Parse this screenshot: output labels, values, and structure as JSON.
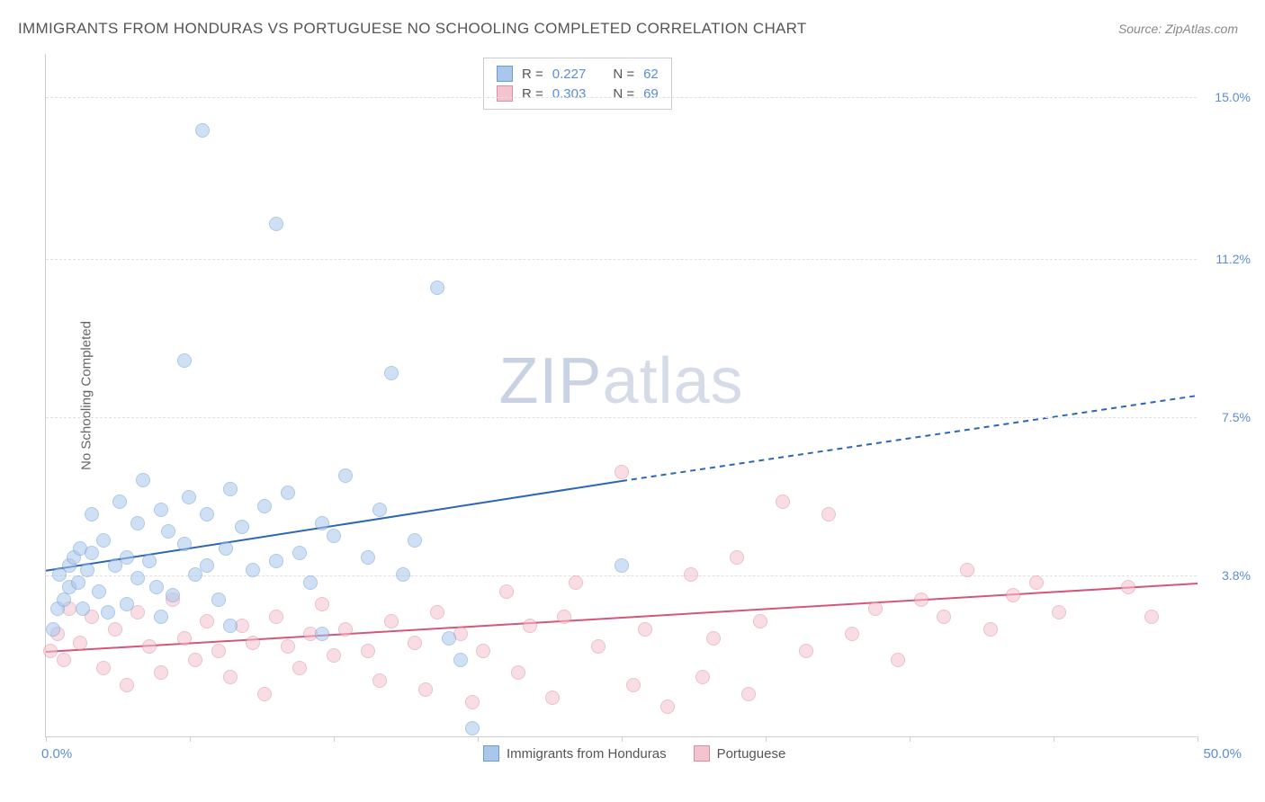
{
  "title": "IMMIGRANTS FROM HONDURAS VS PORTUGUESE NO SCHOOLING COMPLETED CORRELATION CHART",
  "source_label": "Source:",
  "source_name": "ZipAtlas.com",
  "y_axis_title": "No Schooling Completed",
  "watermark_a": "ZIP",
  "watermark_b": "atlas",
  "chart": {
    "type": "scatter",
    "xlim": [
      0,
      50
    ],
    "ylim": [
      0,
      16
    ],
    "x_ticks": [
      0,
      6.25,
      12.5,
      18.75,
      25,
      31.25,
      37.5,
      43.75,
      50
    ],
    "x_min_label": "0.0%",
    "x_max_label": "50.0%",
    "y_gridlines": [
      {
        "v": 3.8,
        "label": "3.8%"
      },
      {
        "v": 7.5,
        "label": "7.5%"
      },
      {
        "v": 11.2,
        "label": "11.2%"
      },
      {
        "v": 15.0,
        "label": "15.0%"
      }
    ],
    "background_color": "#ffffff",
    "grid_color": "#e0e0e0",
    "axis_color": "#cccccc",
    "tick_label_color": "#5b8dd6",
    "marker_radius": 8,
    "marker_opacity": 0.55
  },
  "series_a": {
    "name": "Immigrants from Honduras",
    "fill": "#a9c7ec",
    "stroke": "#6b9cd6",
    "line_color": "#2d66b3",
    "r_label": "R =",
    "r_value": "0.227",
    "n_label": "N =",
    "n_value": "62",
    "trend": {
      "x1": 0,
      "y1": 3.9,
      "x2": 25,
      "y2": 6.0,
      "x_dash_end": 50,
      "y_dash_end": 8.0
    },
    "points": [
      [
        0.3,
        2.5
      ],
      [
        0.5,
        3.0
      ],
      [
        0.6,
        3.8
      ],
      [
        0.8,
        3.2
      ],
      [
        1.0,
        4.0
      ],
      [
        1.0,
        3.5
      ],
      [
        1.2,
        4.2
      ],
      [
        1.4,
        3.6
      ],
      [
        1.5,
        4.4
      ],
      [
        1.6,
        3.0
      ],
      [
        1.8,
        3.9
      ],
      [
        2.0,
        4.3
      ],
      [
        2.0,
        5.2
      ],
      [
        2.3,
        3.4
      ],
      [
        2.5,
        4.6
      ],
      [
        2.7,
        2.9
      ],
      [
        3.0,
        4.0
      ],
      [
        3.2,
        5.5
      ],
      [
        3.5,
        4.2
      ],
      [
        3.5,
        3.1
      ],
      [
        4.0,
        5.0
      ],
      [
        4.0,
        3.7
      ],
      [
        4.2,
        6.0
      ],
      [
        4.5,
        4.1
      ],
      [
        4.8,
        3.5
      ],
      [
        5.0,
        5.3
      ],
      [
        5.0,
        2.8
      ],
      [
        5.3,
        4.8
      ],
      [
        5.5,
        3.3
      ],
      [
        6.0,
        4.5
      ],
      [
        6.0,
        8.8
      ],
      [
        6.2,
        5.6
      ],
      [
        6.5,
        3.8
      ],
      [
        6.8,
        14.2
      ],
      [
        7.0,
        4.0
      ],
      [
        7.0,
        5.2
      ],
      [
        7.5,
        3.2
      ],
      [
        7.8,
        4.4
      ],
      [
        8.0,
        5.8
      ],
      [
        8.0,
        2.6
      ],
      [
        8.5,
        4.9
      ],
      [
        9.0,
        3.9
      ],
      [
        9.5,
        5.4
      ],
      [
        10.0,
        4.1
      ],
      [
        10.0,
        12.0
      ],
      [
        10.5,
        5.7
      ],
      [
        11.0,
        4.3
      ],
      [
        11.5,
        3.6
      ],
      [
        12.0,
        5.0
      ],
      [
        12.0,
        2.4
      ],
      [
        12.5,
        4.7
      ],
      [
        13.0,
        6.1
      ],
      [
        14.0,
        4.2
      ],
      [
        14.5,
        5.3
      ],
      [
        15.0,
        8.5
      ],
      [
        15.5,
        3.8
      ],
      [
        16.0,
        4.6
      ],
      [
        17.0,
        10.5
      ],
      [
        17.5,
        2.3
      ],
      [
        18.0,
        1.8
      ],
      [
        18.5,
        0.2
      ],
      [
        25.0,
        4.0
      ]
    ]
  },
  "series_b": {
    "name": "Portuguese",
    "fill": "#f3c4cf",
    "stroke": "#e08ca0",
    "line_color": "#d6567a",
    "r_label": "R =",
    "r_value": "0.303",
    "n_label": "N =",
    "n_value": "69",
    "trend": {
      "x1": 0,
      "y1": 2.0,
      "x2": 50,
      "y2": 3.6
    },
    "points": [
      [
        0.2,
        2.0
      ],
      [
        0.5,
        2.4
      ],
      [
        0.8,
        1.8
      ],
      [
        1.0,
        3.0
      ],
      [
        1.5,
        2.2
      ],
      [
        2.0,
        2.8
      ],
      [
        2.5,
        1.6
      ],
      [
        3.0,
        2.5
      ],
      [
        3.5,
        1.2
      ],
      [
        4.0,
        2.9
      ],
      [
        4.5,
        2.1
      ],
      [
        5.0,
        1.5
      ],
      [
        5.5,
        3.2
      ],
      [
        6.0,
        2.3
      ],
      [
        6.5,
        1.8
      ],
      [
        7.0,
        2.7
      ],
      [
        7.5,
        2.0
      ],
      [
        8.0,
        1.4
      ],
      [
        8.5,
        2.6
      ],
      [
        9.0,
        2.2
      ],
      [
        9.5,
        1.0
      ],
      [
        10.0,
        2.8
      ],
      [
        10.5,
        2.1
      ],
      [
        11.0,
        1.6
      ],
      [
        11.5,
        2.4
      ],
      [
        12.0,
        3.1
      ],
      [
        12.5,
        1.9
      ],
      [
        13.0,
        2.5
      ],
      [
        14.0,
        2.0
      ],
      [
        14.5,
        1.3
      ],
      [
        15.0,
        2.7
      ],
      [
        16.0,
        2.2
      ],
      [
        16.5,
        1.1
      ],
      [
        17.0,
        2.9
      ],
      [
        18.0,
        2.4
      ],
      [
        18.5,
        0.8
      ],
      [
        19.0,
        2.0
      ],
      [
        20.0,
        3.4
      ],
      [
        20.5,
        1.5
      ],
      [
        21.0,
        2.6
      ],
      [
        22.0,
        0.9
      ],
      [
        22.5,
        2.8
      ],
      [
        23.0,
        3.6
      ],
      [
        24.0,
        2.1
      ],
      [
        25.0,
        6.2
      ],
      [
        25.5,
        1.2
      ],
      [
        26.0,
        2.5
      ],
      [
        27.0,
        0.7
      ],
      [
        28.0,
        3.8
      ],
      [
        28.5,
        1.4
      ],
      [
        29.0,
        2.3
      ],
      [
        30.0,
        4.2
      ],
      [
        30.5,
        1.0
      ],
      [
        31.0,
        2.7
      ],
      [
        32.0,
        5.5
      ],
      [
        33.0,
        2.0
      ],
      [
        34.0,
        5.2
      ],
      [
        35.0,
        2.4
      ],
      [
        36.0,
        3.0
      ],
      [
        37.0,
        1.8
      ],
      [
        38.0,
        3.2
      ],
      [
        39.0,
        2.8
      ],
      [
        40.0,
        3.9
      ],
      [
        41.0,
        2.5
      ],
      [
        42.0,
        3.3
      ],
      [
        43.0,
        3.6
      ],
      [
        44.0,
        2.9
      ],
      [
        47.0,
        3.5
      ],
      [
        48.0,
        2.8
      ]
    ]
  }
}
